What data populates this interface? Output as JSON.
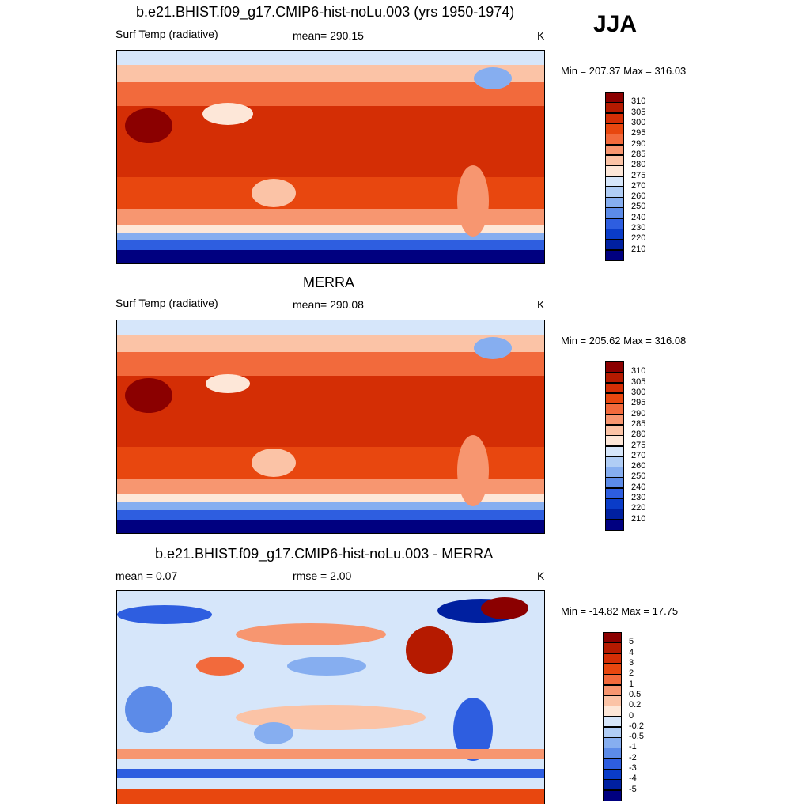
{
  "season_label": "JJA",
  "panels": [
    {
      "id": "model",
      "title": "b.e21.BHIST.f09_g17.CMIP6-hist-noLu.003 (yrs 1950-1974)",
      "left_label": "Surf Temp (radiative)",
      "center_label": "mean= 290.15",
      "units": "K",
      "minmax": "Min = 207.37 Max = 316.03",
      "colorbar": {
        "ticks": [
          "310",
          "305",
          "300",
          "295",
          "290",
          "285",
          "280",
          "275",
          "270",
          "260",
          "250",
          "240",
          "230",
          "220",
          "210"
        ],
        "colors": [
          "#8b0000",
          "#b51a00",
          "#d42e05",
          "#e8470f",
          "#f26a3c",
          "#f79670",
          "#fbc3a6",
          "#fde7d8",
          "#d6e6fa",
          "#b0cdf5",
          "#86aef0",
          "#5c8be8",
          "#2e5ee0",
          "#0a3cc8",
          "#0020a0",
          "#000080"
        ]
      }
    },
    {
      "id": "obs",
      "title": "MERRA",
      "left_label": "Surf Temp (radiative)",
      "center_label": "mean= 290.08",
      "units": "K",
      "minmax": "Min = 205.62 Max = 316.08",
      "colorbar": {
        "ticks": [
          "310",
          "305",
          "300",
          "295",
          "290",
          "285",
          "280",
          "275",
          "270",
          "260",
          "250",
          "240",
          "230",
          "220",
          "210"
        ],
        "colors": [
          "#8b0000",
          "#b51a00",
          "#d42e05",
          "#e8470f",
          "#f26a3c",
          "#f79670",
          "#fbc3a6",
          "#fde7d8",
          "#d6e6fa",
          "#b0cdf5",
          "#86aef0",
          "#5c8be8",
          "#2e5ee0",
          "#0a3cc8",
          "#0020a0",
          "#000080"
        ]
      }
    },
    {
      "id": "diff",
      "title": "b.e21.BHIST.f09_g17.CMIP6-hist-noLu.003 - MERRA",
      "left_label": "mean =   0.07",
      "center_label": "rmse =   2.00",
      "units": "K",
      "minmax": "Min = -14.82 Max =  17.75",
      "colorbar": {
        "ticks": [
          "5",
          "4",
          "3",
          "2",
          "1",
          "0.5",
          "0.2",
          "0",
          "-0.2",
          "-0.5",
          "-1",
          "-2",
          "-3",
          "-4",
          "-5"
        ],
        "colors": [
          "#8b0000",
          "#b51a00",
          "#d42e05",
          "#e8470f",
          "#f26a3c",
          "#f79670",
          "#fbc3a6",
          "#fde7d8",
          "#d6e6fa",
          "#b0cdf5",
          "#86aef0",
          "#5c8be8",
          "#2e5ee0",
          "#0a3cc8",
          "#0020a0",
          "#000080"
        ]
      }
    }
  ],
  "chart_data": [
    {
      "type": "heatmap",
      "title": "b.e21.BHIST.f09_g17.CMIP6-hist-noLu.003 (yrs 1950-1974)",
      "variable": "Surf Temp (radiative)",
      "units": "K",
      "mean": 290.15,
      "min": 207.37,
      "max": 316.03,
      "levels": [
        210,
        220,
        230,
        240,
        250,
        260,
        270,
        275,
        280,
        285,
        290,
        295,
        300,
        305,
        310
      ],
      "zonal_profile_approx": {
        "lat": [
          80,
          60,
          40,
          20,
          0,
          -20,
          -40,
          -60,
          -80
        ],
        "value": [
          275,
          283,
          293,
          300,
          301,
          297,
          287,
          272,
          215
        ]
      }
    },
    {
      "type": "heatmap",
      "title": "MERRA",
      "variable": "Surf Temp (radiative)",
      "units": "K",
      "mean": 290.08,
      "min": 205.62,
      "max": 316.08,
      "levels": [
        210,
        220,
        230,
        240,
        250,
        260,
        270,
        275,
        280,
        285,
        290,
        295,
        300,
        305,
        310
      ],
      "zonal_profile_approx": {
        "lat": [
          80,
          60,
          40,
          20,
          0,
          -20,
          -40,
          -60,
          -80
        ],
        "value": [
          275,
          283,
          293,
          301,
          301,
          297,
          287,
          272,
          218
        ]
      }
    },
    {
      "type": "heatmap",
      "title": "b.e21.BHIST.f09_g17.CMIP6-hist-noLu.003 - MERRA",
      "units": "K",
      "mean": 0.07,
      "rmse": 2.0,
      "min": -14.82,
      "max": 17.75,
      "levels": [
        -5,
        -4,
        -3,
        -2,
        -1,
        -0.5,
        -0.2,
        0,
        0.2,
        0.5,
        1,
        2,
        3,
        4,
        5
      ]
    }
  ]
}
